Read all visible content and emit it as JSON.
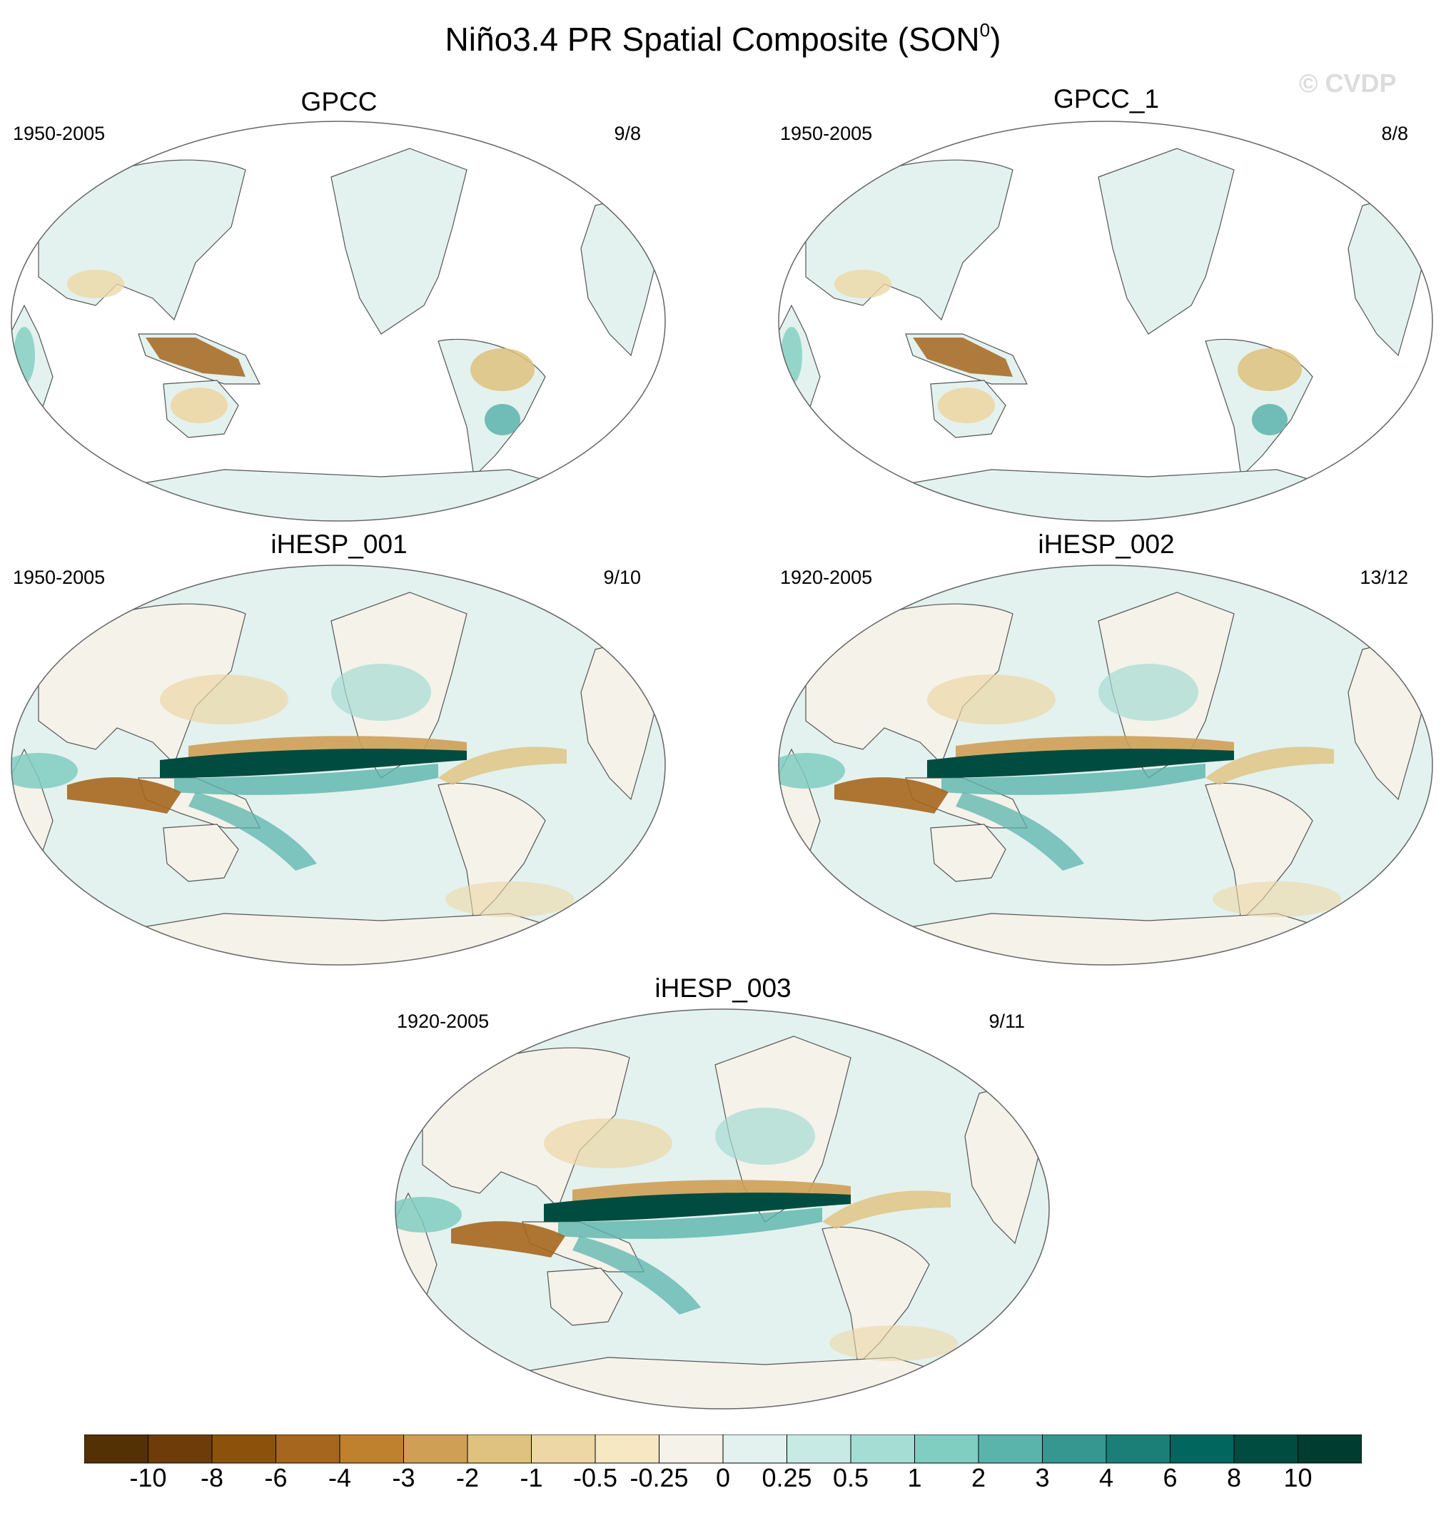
{
  "title": {
    "main": "Niño3.4 PR Spatial Composite (SON",
    "superscript": "0",
    "suffix": ")"
  },
  "watermark": "© CVDP",
  "panels": [
    {
      "name": "GPCC",
      "period": "1950-2005",
      "count": "9/8",
      "land_only": true
    },
    {
      "name": "GPCC_1",
      "period": "1950-2005",
      "count": "8/8",
      "land_only": true
    },
    {
      "name": "iHESP_001",
      "period": "1950-2005",
      "count": "9/10",
      "land_only": false
    },
    {
      "name": "iHESP_002",
      "period": "1920-2005",
      "count": "13/12",
      "land_only": false
    },
    {
      "name": "iHESP_003",
      "period": "1920-2005",
      "count": "9/11",
      "land_only": false
    }
  ],
  "colorbar": {
    "labels": [
      "-10",
      "-8",
      "-6",
      "-4",
      "-3",
      "-2",
      "-1",
      "-0.5",
      "-0.25",
      "0",
      "0.25",
      "0.5",
      "1",
      "2",
      "3",
      "4",
      "6",
      "8",
      "10"
    ],
    "colors": [
      "#543005",
      "#6d3c09",
      "#8c510a",
      "#a6661d",
      "#bf812d",
      "#cf9f55",
      "#dfc27d",
      "#ecd7a5",
      "#f6e8c3",
      "#f5f2ea",
      "#e3f2ef",
      "#c7eae5",
      "#a5dcd3",
      "#80cdc1",
      "#5ab4ac",
      "#35978f",
      "#1b7f77",
      "#01665e",
      "#004c40",
      "#003c30"
    ]
  }
}
